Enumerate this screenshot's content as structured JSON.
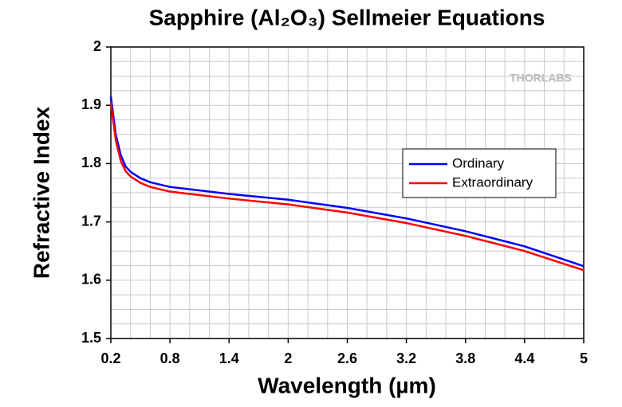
{
  "chart_data": {
    "type": "line",
    "title": "Sapphire (Al₂O₃) Sellmeier Equations",
    "watermark": "THORLABS",
    "x_label": "Wavelength (µm)",
    "y_label": "Refractive Index",
    "x": [
      0.2,
      0.25,
      0.3,
      0.35,
      0.4,
      0.5,
      0.6,
      0.8,
      1.0,
      1.4,
      2.0,
      2.6,
      3.2,
      3.8,
      4.4,
      5.0
    ],
    "series": [
      {
        "name": "Ordinary",
        "color": "#0000ff",
        "values": [
          1.915,
          1.85,
          1.815,
          1.795,
          1.786,
          1.775,
          1.768,
          1.76,
          1.756,
          1.748,
          1.738,
          1.724,
          1.706,
          1.684,
          1.658,
          1.624
        ]
      },
      {
        "name": "Extraordinary",
        "color": "#ff0000",
        "values": [
          1.905,
          1.84,
          1.805,
          1.787,
          1.778,
          1.767,
          1.76,
          1.752,
          1.748,
          1.74,
          1.73,
          1.716,
          1.698,
          1.676,
          1.65,
          1.617
        ]
      }
    ],
    "xlim": [
      0.2,
      5.0
    ],
    "ylim": [
      1.5,
      2.0
    ],
    "xticks": [
      0.2,
      0.8,
      1.4,
      2.0,
      2.6,
      3.2,
      3.8,
      4.4,
      5.0
    ],
    "yticks": [
      1.5,
      1.6,
      1.7,
      1.8,
      1.9,
      2.0
    ],
    "xgrid": [
      0.4,
      0.6,
      0.8,
      1.0,
      1.2,
      1.4,
      1.6,
      1.8,
      2.0,
      2.2,
      2.4,
      2.6,
      2.8,
      3.0,
      3.2,
      3.4,
      3.6,
      3.8,
      4.0,
      4.2,
      4.4,
      4.6,
      4.8
    ],
    "ygrid": [
      1.525,
      1.55,
      1.575,
      1.6,
      1.625,
      1.65,
      1.675,
      1.7,
      1.725,
      1.75,
      1.775,
      1.8,
      1.825,
      1.85,
      1.875,
      1.9,
      1.925,
      1.95,
      1.975
    ],
    "grid": true,
    "legend": "right"
  }
}
